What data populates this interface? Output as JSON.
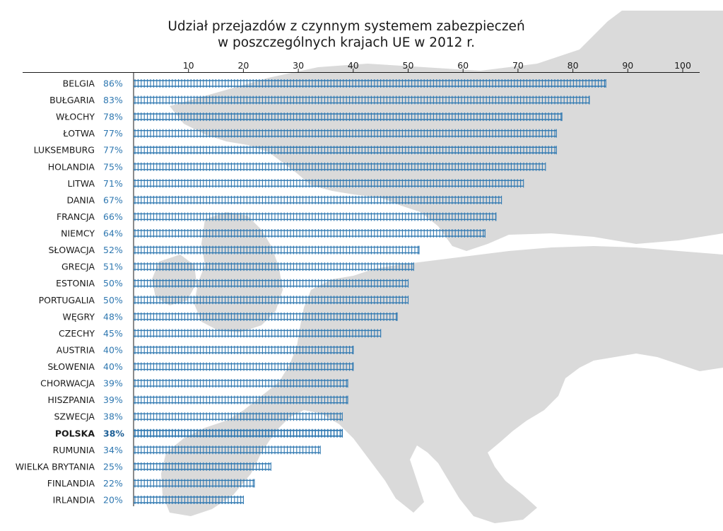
{
  "colors": {
    "bar": "#2f78b1",
    "value_text": "#2f78b1",
    "value_text_highlight": "#1d5f96",
    "text": "#1a1a1a",
    "map_land": "#dadada",
    "axis": "#1a1a1a"
  },
  "chart_data": {
    "type": "bar",
    "orientation": "horizontal",
    "title": "Udział przejazdów z czynnym systemem zabezpieczeń",
    "subtitle": "w poszczególnych krajach UE w 2012 r.",
    "xlim": [
      0,
      100
    ],
    "ticks": [
      10,
      20,
      30,
      40,
      50,
      60,
      70,
      80,
      90,
      100
    ],
    "grid": false,
    "bar_style": "railway-track",
    "categories": [
      "BELGIA",
      "BUŁGARIA",
      "WŁOCHY",
      "ŁOTWA",
      "LUKSEMBURG",
      "HOLANDIA",
      "LITWA",
      "DANIA",
      "FRANCJA",
      "NIEMCY",
      "SŁOWACJA",
      "GRECJA",
      "ESTONIA",
      "PORTUGALIA",
      "WĘGRY",
      "CZECHY",
      "AUSTRIA",
      "SŁOWENIA",
      "CHORWACJA",
      "HISZPANIA",
      "SZWECJA",
      "POLSKA",
      "RUMUNIA",
      "WIELKA BRYTANIA",
      "FINLANDIA",
      "IRLANDIA"
    ],
    "values": [
      86,
      83,
      78,
      77,
      77,
      75,
      71,
      67,
      66,
      64,
      52,
      51,
      50,
      50,
      48,
      45,
      40,
      40,
      39,
      39,
      38,
      38,
      34,
      25,
      22,
      20
    ],
    "value_labels": [
      "86%",
      "83%",
      "78%",
      "77%",
      "77%",
      "75%",
      "71%",
      "67%",
      "66%",
      "64%",
      "52%",
      "51%",
      "50%",
      "50%",
      "48%",
      "45%",
      "40%",
      "40%",
      "39%",
      "39%",
      "38%",
      "38%",
      "34%",
      "25%",
      "22%",
      "20%"
    ],
    "highlight": "POLSKA",
    "background": "map of Europe (light grey)"
  }
}
